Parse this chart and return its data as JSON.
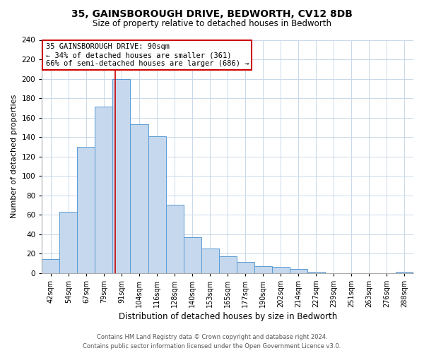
{
  "title": "35, GAINSBOROUGH DRIVE, BEDWORTH, CV12 8DB",
  "subtitle": "Size of property relative to detached houses in Bedworth",
  "xlabel": "Distribution of detached houses by size in Bedworth",
  "ylabel": "Number of detached properties",
  "bar_color": "#c5d8ed",
  "bar_edge_color": "#5b9bd5",
  "bin_labels": [
    "42sqm",
    "54sqm",
    "67sqm",
    "79sqm",
    "91sqm",
    "104sqm",
    "116sqm",
    "128sqm",
    "140sqm",
    "153sqm",
    "165sqm",
    "177sqm",
    "190sqm",
    "202sqm",
    "214sqm",
    "227sqm",
    "239sqm",
    "251sqm",
    "263sqm",
    "276sqm",
    "288sqm"
  ],
  "bar_heights": [
    14,
    63,
    130,
    171,
    200,
    153,
    141,
    70,
    37,
    25,
    17,
    11,
    7,
    6,
    4,
    1,
    0,
    0,
    0,
    0,
    1
  ],
  "vline_x": 4.0,
  "vline_color": "#cc0000",
  "annotation_title": "35 GAINSBOROUGH DRIVE: 90sqm",
  "annotation_line1": "← 34% of detached houses are smaller (361)",
  "annotation_line2": "66% of semi-detached houses are larger (686) →",
  "annotation_box_color": "#ffffff",
  "annotation_box_edge_color": "#cc0000",
  "ylim": [
    0,
    240
  ],
  "yticks": [
    0,
    20,
    40,
    60,
    80,
    100,
    120,
    140,
    160,
    180,
    200,
    220,
    240
  ],
  "footer_line1": "Contains HM Land Registry data © Crown copyright and database right 2024.",
  "footer_line2": "Contains public sector information licensed under the Open Government Licence v3.0.",
  "background_color": "#ffffff",
  "grid_color": "#c8d8e8"
}
